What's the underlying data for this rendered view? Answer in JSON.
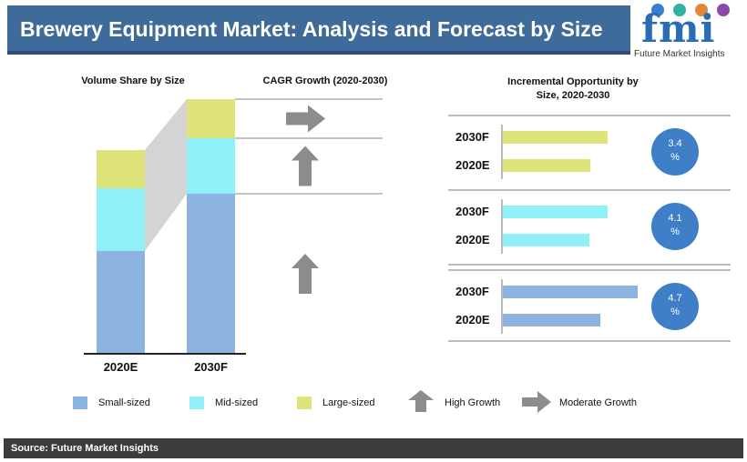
{
  "header": {
    "title": "Brewery Equipment Market: Analysis and Forecast by Size"
  },
  "logo": {
    "letters": "fmi",
    "tagline": "Future Market Insights"
  },
  "colors": {
    "small": "#8db3e0",
    "mid": "#8ff0f8",
    "large": "#dfe47a",
    "circle": "#3f7fc8",
    "arrow": "#8c8c8c",
    "title_bg": "#3e6b99"
  },
  "chart_data": [
    {
      "type": "bar",
      "stacked": true,
      "title": "Volume Share by Size",
      "categories": [
        "2020E",
        "2030F"
      ],
      "series": [
        {
          "name": "Small-sized",
          "values": [
            113,
            176
          ]
        },
        {
          "name": "Mid-sized",
          "values": [
            69,
            61
          ]
        },
        {
          "name": "Large-sized",
          "values": [
            42,
            43
          ]
        }
      ]
    },
    {
      "type": "table",
      "title": "CAGR Growth (2020-2030)",
      "rows": [
        {
          "segment": "Large-sized",
          "growth": "Moderate Growth",
          "arrow": "right"
        },
        {
          "segment": "Mid-sized",
          "growth": "High Growth",
          "arrow": "up"
        },
        {
          "segment": "Small-sized",
          "growth": "High Growth",
          "arrow": "up"
        }
      ]
    },
    {
      "type": "bar",
      "orientation": "horizontal",
      "title": "Incremental Opportunity by Size, 2020-2030",
      "groups": [
        {
          "segment": "Large-sized",
          "multiplier_value": "3.4",
          "multiplier_unit": "%",
          "bars": [
            {
              "label": "2030F",
              "value": 115
            },
            {
              "label": "2020E",
              "value": 96
            }
          ]
        },
        {
          "segment": "Mid-sized",
          "multiplier_value": "4.1",
          "multiplier_unit": "%",
          "bars": [
            {
              "label": "2030F",
              "value": 115
            },
            {
              "label": "2020E",
              "value": 95
            }
          ]
        },
        {
          "segment": "Small-sized",
          "multiplier_value": "4.7",
          "multiplier_unit": "%",
          "bars": [
            {
              "label": "2030F",
              "value": 148
            },
            {
              "label": "2020E",
              "value": 107
            }
          ]
        }
      ]
    }
  ],
  "legend": {
    "small": "Small-sized",
    "mid": "Mid-sized",
    "large": "Large-sized",
    "high": "High Growth",
    "moderate": "Moderate Growth"
  },
  "footer": {
    "source": "Source: Future Market Insights"
  }
}
